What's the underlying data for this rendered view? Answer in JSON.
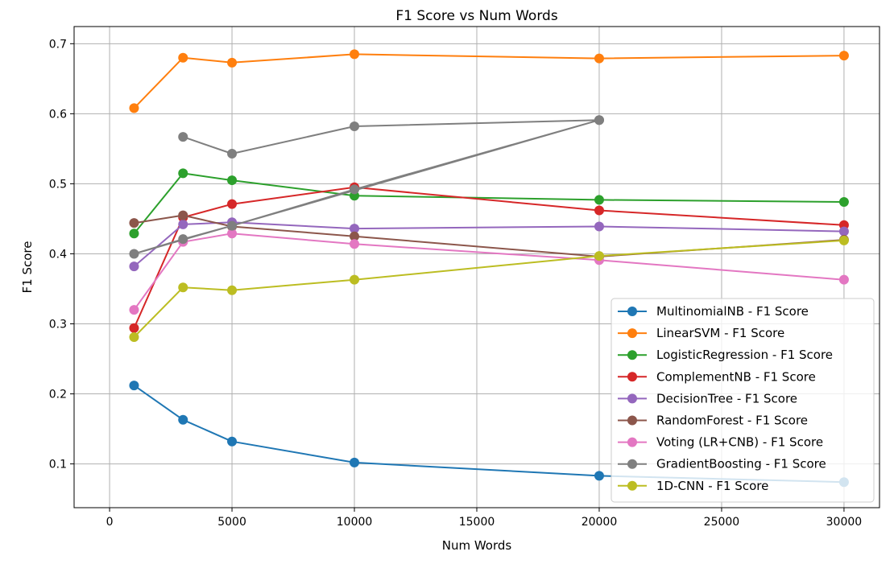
{
  "chart_data": {
    "type": "line",
    "title": "F1 Score vs Num Words",
    "xlabel": "Num Words",
    "ylabel": "F1 Score",
    "xlim": [
      -1450,
      31450
    ],
    "ylim": [
      0.0375,
      0.7245
    ],
    "xticks": [
      0,
      5000,
      10000,
      15000,
      20000,
      25000,
      30000
    ],
    "xtick_labels": [
      "0",
      "5000",
      "10000",
      "15000",
      "20000",
      "25000",
      "30000"
    ],
    "yticks": [
      0.1,
      0.2,
      0.3,
      0.4,
      0.5,
      0.6,
      0.7
    ],
    "ytick_labels": [
      "0.1",
      "0.2",
      "0.3",
      "0.4",
      "0.5",
      "0.6",
      "0.7"
    ],
    "grid": true,
    "legend_position": "lower-right",
    "series": [
      {
        "name": "MultinomialNB - F1 Score",
        "color": "#1f77b4",
        "x": [
          1000,
          3000,
          5000,
          10000,
          20000,
          30000
        ],
        "y": [
          0.212,
          0.163,
          0.132,
          0.102,
          0.083,
          0.074
        ]
      },
      {
        "name": "LinearSVM - F1 Score",
        "color": "#ff7f0e",
        "x": [
          1000,
          3000,
          5000,
          10000,
          20000,
          30000
        ],
        "y": [
          0.608,
          0.68,
          0.673,
          0.685,
          0.679,
          0.683
        ]
      },
      {
        "name": "LogisticRegression - F1 Score",
        "color": "#2ca02c",
        "x": [
          1000,
          3000,
          5000,
          10000,
          20000,
          30000
        ],
        "y": [
          0.429,
          0.515,
          0.505,
          0.483,
          0.477,
          0.474
        ]
      },
      {
        "name": "ComplementNB - F1 Score",
        "color": "#d62728",
        "x": [
          1000,
          3000,
          5000,
          10000,
          20000,
          30000
        ],
        "y": [
          0.294,
          0.452,
          0.471,
          0.495,
          0.462,
          0.441
        ]
      },
      {
        "name": "DecisionTree - F1 Score",
        "color": "#9467bd",
        "x": [
          1000,
          3000,
          5000,
          10000,
          20000,
          30000
        ],
        "y": [
          0.382,
          0.442,
          0.445,
          0.436,
          0.439,
          0.432
        ]
      },
      {
        "name": "RandomForest - F1 Score",
        "color": "#8c564b",
        "x": [
          1000,
          3000,
          5000,
          10000,
          20000,
          30000
        ],
        "y": [
          0.444,
          0.455,
          0.439,
          0.425,
          0.396,
          0.42
        ]
      },
      {
        "name": "Voting (LR+CNB) - F1 Score",
        "color": "#e377c2",
        "x": [
          1000,
          3000,
          5000,
          10000,
          20000,
          30000
        ],
        "y": [
          0.32,
          0.417,
          0.429,
          0.414,
          0.391,
          0.363
        ]
      },
      {
        "name": "GradientBoosting - F1 Score",
        "color": "#7f7f7f",
        "x": [
          3000,
          5000,
          10000,
          20000,
          1000,
          3000,
          5000,
          10000,
          20000
        ],
        "y": [
          0.567,
          0.543,
          0.582,
          0.591,
          0.4,
          0.421,
          0.44,
          0.492,
          0.591
        ]
      },
      {
        "name": "1D-CNN - F1 Score",
        "color": "#bcbd22",
        "x": [
          1000,
          3000,
          5000,
          10000,
          20000,
          30000
        ],
        "y": [
          0.281,
          0.352,
          0.348,
          0.363,
          0.397,
          0.419
        ]
      }
    ]
  }
}
